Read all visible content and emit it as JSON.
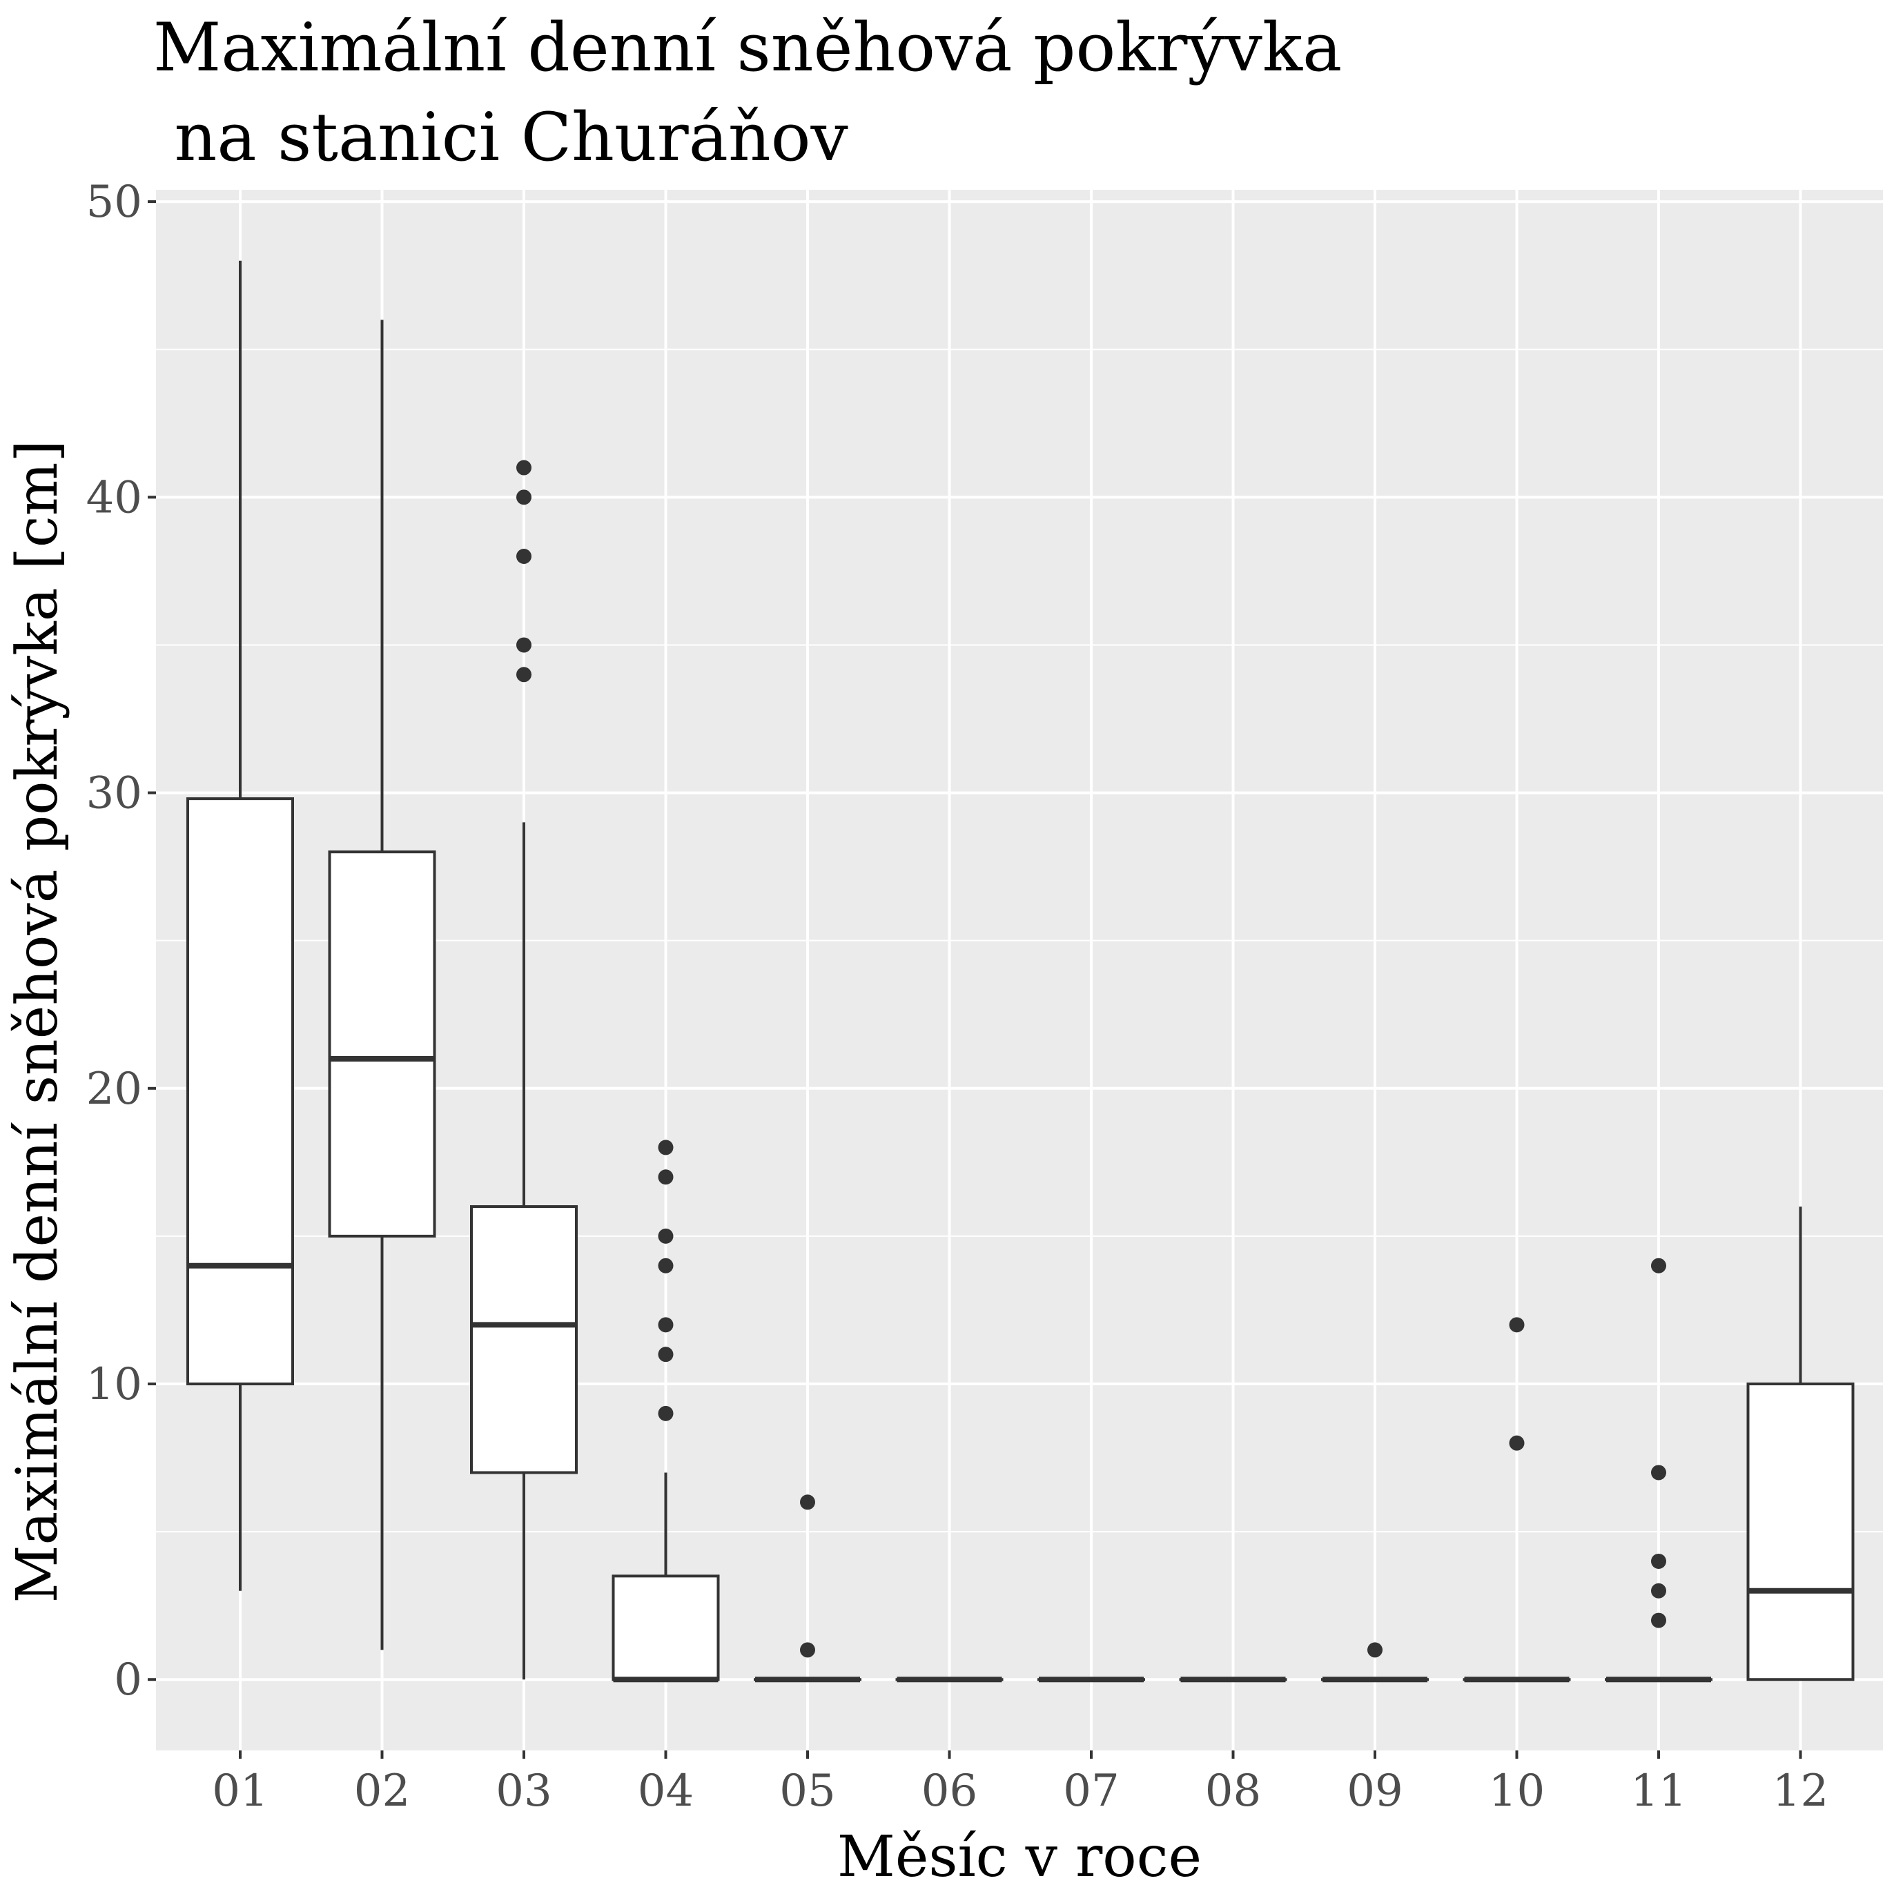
{
  "chart_data": {
    "type": "boxplot",
    "title_lines": [
      "Maximální denní sněhová pokrývka",
      " na stanici Churáňov"
    ],
    "xlabel": "Měsíc v roce",
    "ylabel": "Maximální denní sněhová pokrývka [cm]",
    "ylim": [
      -2.4,
      50.4
    ],
    "y_ticks": [
      0,
      10,
      20,
      30,
      40,
      50
    ],
    "y_tick_labels": [
      "0",
      "10",
      "20",
      "30",
      "40",
      "50"
    ],
    "grid": true,
    "categories": [
      "01",
      "02",
      "03",
      "04",
      "05",
      "06",
      "07",
      "08",
      "09",
      "10",
      "11",
      "12"
    ],
    "boxes": [
      {
        "category": "01",
        "whisker_low": 3,
        "q1": 10,
        "median": 14,
        "q3": 29.8,
        "whisker_high": 48,
        "outliers": []
      },
      {
        "category": "02",
        "whisker_low": 1,
        "q1": 15,
        "median": 21,
        "q3": 28,
        "whisker_high": 46,
        "outliers": []
      },
      {
        "category": "03",
        "whisker_low": 0,
        "q1": 7,
        "median": 12,
        "q3": 16,
        "whisker_high": 29,
        "outliers": [
          34,
          35,
          38,
          40,
          41
        ]
      },
      {
        "category": "04",
        "whisker_low": 0,
        "q1": 0,
        "median": 0,
        "q3": 3.5,
        "whisker_high": 7,
        "outliers": [
          9,
          11,
          12,
          14,
          15,
          17,
          18
        ]
      },
      {
        "category": "05",
        "whisker_low": 0,
        "q1": 0,
        "median": 0,
        "q3": 0,
        "whisker_high": 0,
        "outliers": [
          1,
          6
        ]
      },
      {
        "category": "06",
        "whisker_low": 0,
        "q1": 0,
        "median": 0,
        "q3": 0,
        "whisker_high": 0,
        "outliers": []
      },
      {
        "category": "07",
        "whisker_low": 0,
        "q1": 0,
        "median": 0,
        "q3": 0,
        "whisker_high": 0,
        "outliers": []
      },
      {
        "category": "08",
        "whisker_low": 0,
        "q1": 0,
        "median": 0,
        "q3": 0,
        "whisker_high": 0,
        "outliers": []
      },
      {
        "category": "09",
        "whisker_low": 0,
        "q1": 0,
        "median": 0,
        "q3": 0,
        "whisker_high": 0,
        "outliers": [
          1
        ]
      },
      {
        "category": "10",
        "whisker_low": 0,
        "q1": 0,
        "median": 0,
        "q3": 0,
        "whisker_high": 0,
        "outliers": [
          8,
          12
        ]
      },
      {
        "category": "11",
        "whisker_low": 0,
        "q1": 0,
        "median": 0,
        "q3": 0,
        "whisker_high": 0,
        "outliers": [
          2,
          3,
          4,
          7,
          14
        ]
      },
      {
        "category": "12",
        "whisker_low": 0,
        "q1": 0,
        "median": 3,
        "q3": 10,
        "whisker_high": 16,
        "outliers": []
      }
    ],
    "colors": {
      "panel_background": "#ebebeb",
      "grid": "#ffffff",
      "box_fill": "#ffffff",
      "box_line": "#333333",
      "tick_text": "#4d4d4d"
    }
  }
}
